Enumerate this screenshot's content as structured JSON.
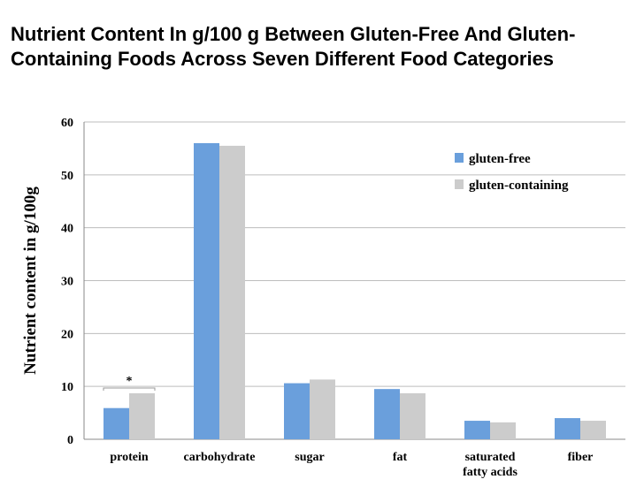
{
  "header": {
    "title_line1": "Nutrient Content In g/100 g Between Gluten-Free And Gluten-",
    "title_line2": "Containing Foods Across Seven Different Food Categories"
  },
  "chart_data": {
    "type": "bar",
    "title": "Nutrient Content In g/100 g Between Gluten-Free And Gluten-Containing Foods Across Seven Different Food Categories",
    "xlabel": "",
    "ylabel": "Nutrient content in g/100g",
    "ylim": [
      0,
      60
    ],
    "yticks": [
      0,
      10,
      20,
      30,
      40,
      50,
      60
    ],
    "grid": true,
    "legend_position": "top-right",
    "categories": [
      [
        "protein"
      ],
      [
        "carbohydrate"
      ],
      [
        "sugar"
      ],
      [
        "fat"
      ],
      [
        "saturated",
        "fatty acids"
      ],
      [
        "fiber"
      ]
    ],
    "series": [
      {
        "name": "gluten-free",
        "color": "#6a9fdc",
        "values": [
          5.9,
          56.0,
          10.6,
          9.5,
          3.5,
          4.0
        ]
      },
      {
        "name": "gluten-containing",
        "color": "#cccccc",
        "values": [
          8.7,
          55.5,
          11.3,
          8.7,
          3.2,
          3.5
        ]
      }
    ],
    "annotations": [
      {
        "text": "*",
        "category_index": 0
      }
    ]
  }
}
